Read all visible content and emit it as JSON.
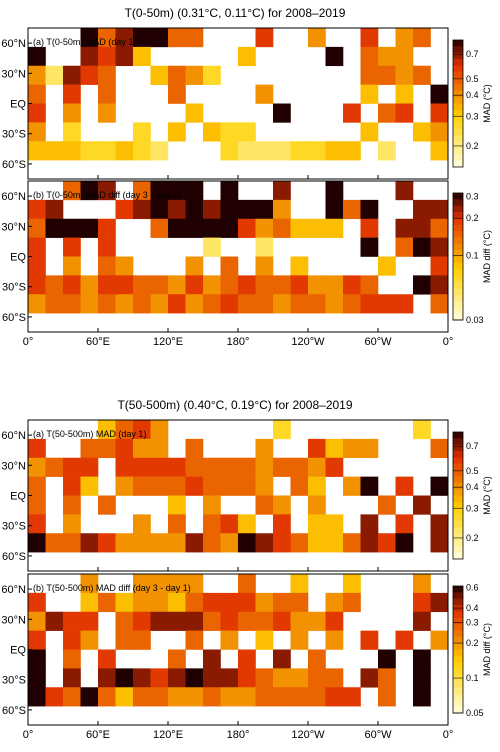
{
  "figures": [
    {
      "title": "T(0-50m) (0.31°C, 0.11°C) for 2008–2019",
      "panels": [
        {
          "label": "(a) T(0-50m) MAD (day 1)",
          "cbar_label": "MAD (°C)",
          "cbar_ticks": [
            "0.7",
            "0.5",
            "0.4",
            "0.3",
            "0.2"
          ],
          "cbar_tick_values": [
            0.7,
            0.5,
            0.4,
            0.3,
            0.2
          ],
          "cbar_range": [
            0.15,
            0.85
          ]
        },
        {
          "label": "(b) T(0-50m) MAD diff (day 3 - day 1)",
          "cbar_label": "MAD diff (°C)",
          "cbar_ticks": [
            "0.3",
            "0.2",
            "0.1",
            "0.03"
          ],
          "cbar_tick_values": [
            0.3,
            0.2,
            0.1,
            0.03
          ],
          "cbar_range": [
            0.03,
            0.32
          ]
        }
      ]
    },
    {
      "title": "T(50-500m) (0.40°C, 0.19°C) for 2008–2019",
      "panels": [
        {
          "label": "(a) T(50-500m) MAD (day 1)",
          "cbar_label": "MAD (°C)",
          "cbar_ticks": [
            "0.7",
            "0.5",
            "0.4",
            "0.3",
            "0.2"
          ],
          "cbar_tick_values": [
            0.7,
            0.5,
            0.4,
            0.3,
            0.2
          ],
          "cbar_range": [
            0.15,
            0.85
          ]
        },
        {
          "label": "(b) T(50-500m) MAD diff (day 3 - day 1)",
          "cbar_label": "MAD diff (°C)",
          "cbar_ticks": [
            "0.6",
            "0.4",
            "0.3",
            "0.2",
            "0.1",
            "0.05"
          ],
          "cbar_tick_values": [
            0.6,
            0.4,
            0.3,
            0.2,
            0.1,
            0.05
          ],
          "cbar_range": [
            0.05,
            0.62
          ]
        }
      ]
    }
  ],
  "lat_labels": [
    "60°N",
    "30°N",
    "EQ",
    "30°S",
    "60°S"
  ],
  "lon_labels": [
    "0°",
    "60°E",
    "120°E",
    "180°",
    "120°W",
    "60°W",
    "0°"
  ],
  "colors": {
    "low": "#ffffe0",
    "mid": "#ffd000",
    "high": "#e03000",
    "max": "#200000"
  },
  "chart_data": {
    "type": "heatmap",
    "grid_columns": 24,
    "grid_rows": 8,
    "lon_range": [
      0,
      360
    ],
    "lat_range": [
      -75,
      75
    ],
    "note_values": "MAD 0-9 intensity classes (0 = lowest of colorbar, 9 = highest); '.' = land or no data",
    "grids": [
      [
        "...9689966...7..5..7.56.",
        "9..8784.....4....9.655..",
        "52876..4653........6656.",
        "6.7.6...6....5.....4.4.9",
        "7.5.5....4....9...7.67.7",
        "5.3...3.4.433......4..45",
        "44433432...32223344.2..4",
        "........................"
      ],
      [
        "..698.6999.9..8..9...8..",
        "78...7898989995..969..88",
        "69997..69999756444.7.886",
        "7.7.7.....2..2.....9.698",
        "7.5.65...5.6.5.4....4..7",
        "76757766575676675576..98",
        "5665656575676656656777.6",
        "........................"
      ],
      [
        "....4675......3.......3.",
        "7..66755.6...5..7455...6",
        "5677.7777666656657......",
        "6.74.566676665.64.59.7.9",
        "6.6.6...4.5..65.5...6.8.",
        "7.5...5.6.674.7.44.8.7.8",
        "9668755558659876446879.8",
        "........................"
      ],
      [
        "...5..5555..6..4..4...5.",
        "7..4645546777566.56...78",
        "5877.6788867667557....8.",
        "7.75.66..6.5.4.5.5.7.7.5",
        "9.6.7...6.8.7.8.6...9.9.",
        "9.8.89878988765566.86.9.",
        "9769646655655666677.6.9.",
        "........................"
      ]
    ]
  }
}
